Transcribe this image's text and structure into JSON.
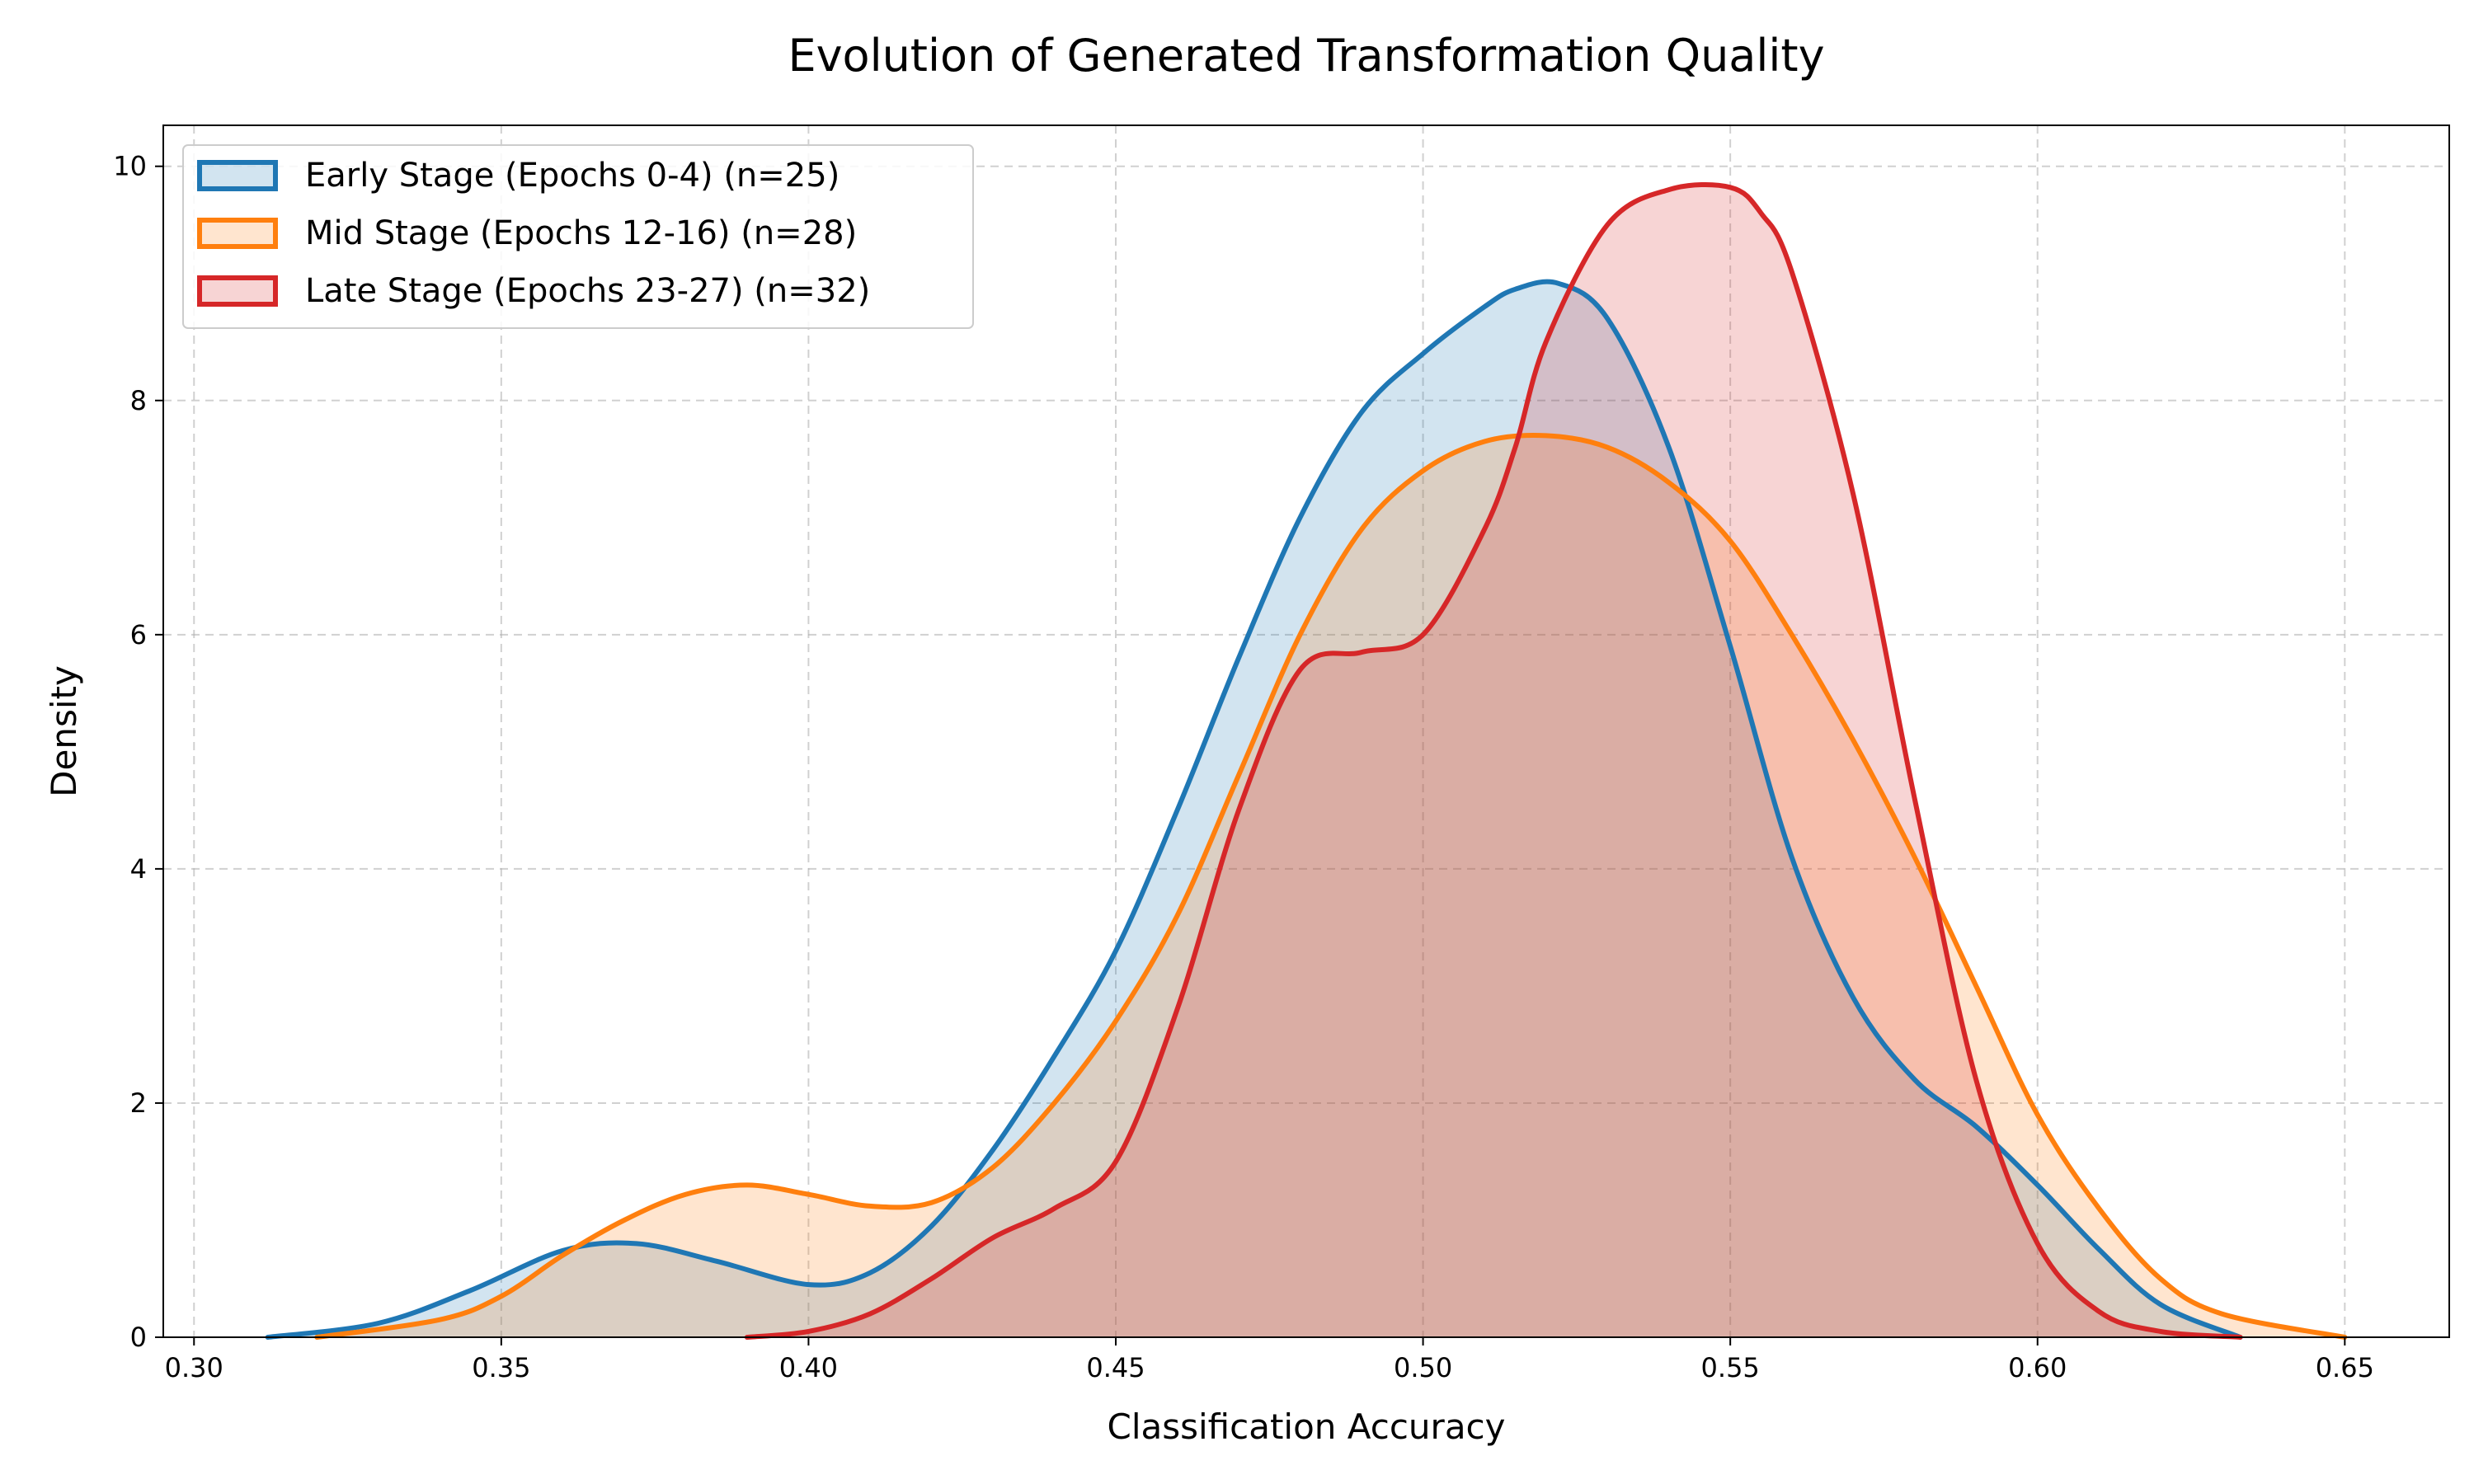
{
  "chart_data": {
    "type": "area",
    "title": "Evolution of Generated Transformation Quality",
    "xlabel": "Classification Accuracy",
    "ylabel": "Density",
    "xlim": [
      0.295,
      0.667
    ],
    "ylim": [
      0,
      10.35
    ],
    "xticks": [
      "0.30",
      "0.35",
      "0.40",
      "0.45",
      "0.50",
      "0.55",
      "0.60",
      "0.65"
    ],
    "xtick_values": [
      0.3,
      0.35,
      0.4,
      0.45,
      0.5,
      0.55,
      0.6,
      0.65
    ],
    "yticks": [
      "0",
      "2",
      "4",
      "6",
      "8",
      "10"
    ],
    "ytick_values": [
      0,
      2,
      4,
      6,
      8,
      10
    ],
    "grid": true,
    "legend_position": "top-left",
    "series": [
      {
        "name": "Early Stage (Epochs 0-4) (n=25)",
        "color": "#1f77b4",
        "fill": "#1f77b4",
        "x": [
          0.312,
          0.33,
          0.345,
          0.36,
          0.372,
          0.385,
          0.4,
          0.41,
          0.42,
          0.43,
          0.44,
          0.45,
          0.46,
          0.47,
          0.48,
          0.49,
          0.5,
          0.51,
          0.515,
          0.522,
          0.53,
          0.54,
          0.55,
          0.56,
          0.57,
          0.58,
          0.59,
          0.6,
          0.61,
          0.62,
          0.633
        ],
        "y": [
          0.0,
          0.12,
          0.4,
          0.74,
          0.8,
          0.65,
          0.45,
          0.55,
          0.95,
          1.6,
          2.4,
          3.3,
          4.5,
          5.8,
          7.0,
          7.9,
          8.4,
          8.8,
          8.95,
          9.0,
          8.7,
          7.6,
          5.9,
          4.1,
          2.9,
          2.2,
          1.8,
          1.3,
          0.75,
          0.28,
          0.0
        ]
      },
      {
        "name": "Mid Stage (Epochs 12-16) (n=28)",
        "color": "#ff7f0e",
        "fill": "#ff7f0e",
        "x": [
          0.32,
          0.34,
          0.35,
          0.36,
          0.37,
          0.38,
          0.39,
          0.4,
          0.41,
          0.42,
          0.43,
          0.44,
          0.45,
          0.46,
          0.47,
          0.48,
          0.49,
          0.5,
          0.51,
          0.52,
          0.53,
          0.54,
          0.55,
          0.56,
          0.57,
          0.58,
          0.59,
          0.6,
          0.61,
          0.62,
          0.63,
          0.65
        ],
        "y": [
          0.0,
          0.15,
          0.35,
          0.7,
          1.0,
          1.22,
          1.3,
          1.22,
          1.12,
          1.15,
          1.45,
          2.0,
          2.7,
          3.6,
          4.8,
          6.0,
          6.9,
          7.4,
          7.65,
          7.7,
          7.6,
          7.3,
          6.8,
          6.0,
          5.1,
          4.1,
          3.0,
          1.9,
          1.1,
          0.5,
          0.2,
          0.0
        ]
      },
      {
        "name": "Late Stage (Epochs 23-27) (n=32)",
        "color": "#d62728",
        "fill": "#d62728",
        "x": [
          0.39,
          0.4,
          0.41,
          0.42,
          0.43,
          0.44,
          0.45,
          0.46,
          0.47,
          0.48,
          0.49,
          0.5,
          0.51,
          0.515,
          0.52,
          0.53,
          0.54,
          0.55,
          0.555,
          0.56,
          0.57,
          0.58,
          0.59,
          0.6,
          0.61,
          0.62,
          0.633
        ],
        "y": [
          0.0,
          0.05,
          0.2,
          0.5,
          0.85,
          1.1,
          1.5,
          2.8,
          4.5,
          5.7,
          5.85,
          6.0,
          6.9,
          7.6,
          8.5,
          9.5,
          9.8,
          9.82,
          9.6,
          9.1,
          7.2,
          4.6,
          2.2,
          0.8,
          0.22,
          0.05,
          0.0
        ]
      }
    ]
  }
}
